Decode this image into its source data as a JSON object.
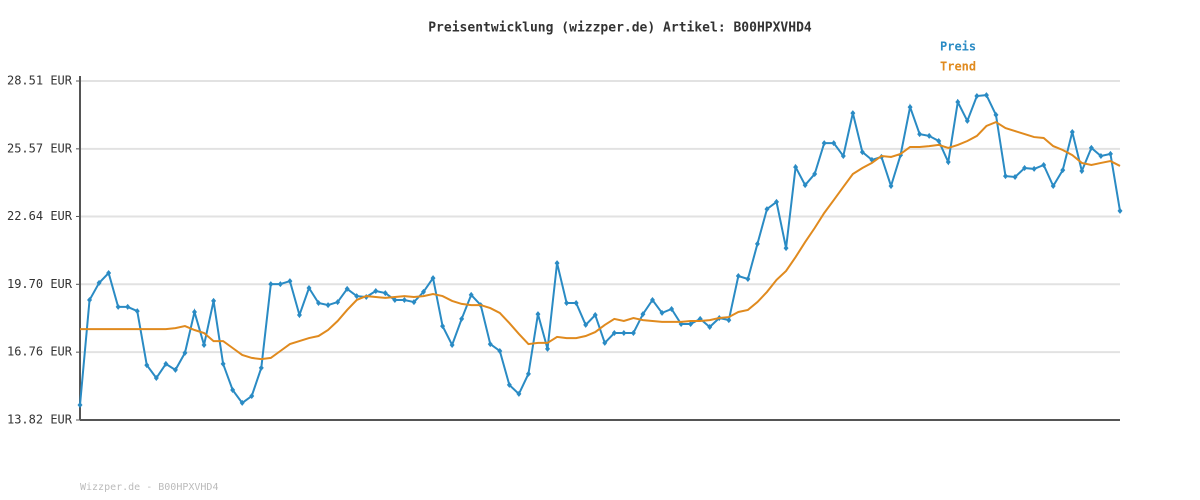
{
  "chart_data": {
    "type": "line",
    "title": "Preisentwicklung (wizzper.de) Artikel: B00HPXVHD4",
    "footer": "Wizzper.de - B00HPXVHD4",
    "legend": "top-right",
    "grid": true,
    "ylim": [
      13.82,
      28.51
    ],
    "yticks": [
      {
        "value": 13.82,
        "label": "13.82 EUR"
      },
      {
        "value": 16.76,
        "label": "16.76 EUR"
      },
      {
        "value": 19.7,
        "label": "19.70 EUR"
      },
      {
        "value": 22.64,
        "label": "22.64 EUR"
      },
      {
        "value": 25.57,
        "label": "25.57 EUR"
      },
      {
        "value": 28.51,
        "label": "28.51 EUR"
      }
    ],
    "series": [
      {
        "name": "Preis",
        "color": "#2a8bc4",
        "markers": true,
        "values": [
          14.47,
          19.02,
          19.76,
          20.19,
          18.72,
          18.72,
          18.54,
          16.2,
          15.64,
          16.25,
          15.99,
          16.73,
          18.5,
          17.07,
          18.98,
          16.25,
          15.12,
          14.56,
          14.86,
          16.08,
          19.71,
          19.71,
          19.84,
          18.37,
          19.54,
          18.89,
          18.8,
          18.93,
          19.5,
          19.19,
          19.15,
          19.41,
          19.32,
          19.02,
          19.02,
          18.93,
          19.37,
          19.97,
          17.89,
          17.07,
          18.2,
          19.24,
          18.8,
          17.11,
          16.81,
          15.34,
          14.95,
          15.82,
          18.41,
          16.9,
          20.62,
          18.89,
          18.89,
          17.94,
          18.37,
          17.16,
          17.59,
          17.59,
          17.59,
          18.41,
          19.02,
          18.46,
          18.63,
          17.98,
          17.98,
          18.2,
          17.85,
          18.24,
          18.15,
          20.06,
          19.93,
          21.45,
          22.96,
          23.27,
          21.27,
          24.78,
          24.0,
          24.48,
          25.82,
          25.82,
          25.26,
          27.12,
          25.43,
          25.09,
          25.22,
          23.96,
          25.3,
          27.38,
          26.21,
          26.13,
          25.91,
          25.0,
          27.6,
          26.78,
          27.86,
          27.9,
          27.04,
          24.39,
          24.35,
          24.74,
          24.7,
          24.87,
          23.96,
          24.65,
          26.3,
          24.61,
          25.61,
          25.26,
          25.35,
          22.88
        ]
      },
      {
        "name": "Trend",
        "color": "#e08a1e",
        "markers": false,
        "values": [
          17.76,
          17.76,
          17.76,
          17.76,
          17.76,
          17.76,
          17.76,
          17.76,
          17.76,
          17.76,
          17.8,
          17.89,
          17.72,
          17.59,
          17.24,
          17.24,
          16.94,
          16.64,
          16.51,
          16.46,
          16.51,
          16.81,
          17.11,
          17.24,
          17.37,
          17.46,
          17.72,
          18.11,
          18.59,
          19.02,
          19.19,
          19.15,
          19.11,
          19.15,
          19.19,
          19.15,
          19.19,
          19.28,
          19.19,
          18.98,
          18.85,
          18.8,
          18.8,
          18.67,
          18.46,
          18.02,
          17.55,
          17.11,
          17.16,
          17.16,
          17.42,
          17.37,
          17.37,
          17.46,
          17.63,
          17.94,
          18.2,
          18.11,
          18.24,
          18.15,
          18.11,
          18.07,
          18.07,
          18.07,
          18.11,
          18.11,
          18.15,
          18.24,
          18.28,
          18.5,
          18.59,
          18.93,
          19.37,
          19.89,
          20.28,
          20.88,
          21.53,
          22.14,
          22.79,
          23.35,
          23.92,
          24.48,
          24.74,
          24.96,
          25.26,
          25.22,
          25.35,
          25.65,
          25.65,
          25.69,
          25.74,
          25.61,
          25.74,
          25.91,
          26.13,
          26.56,
          26.73,
          26.47,
          26.34,
          26.21,
          26.08,
          26.04,
          25.69,
          25.52,
          25.3,
          24.96,
          24.87,
          24.96,
          25.04,
          24.83
        ]
      }
    ]
  }
}
